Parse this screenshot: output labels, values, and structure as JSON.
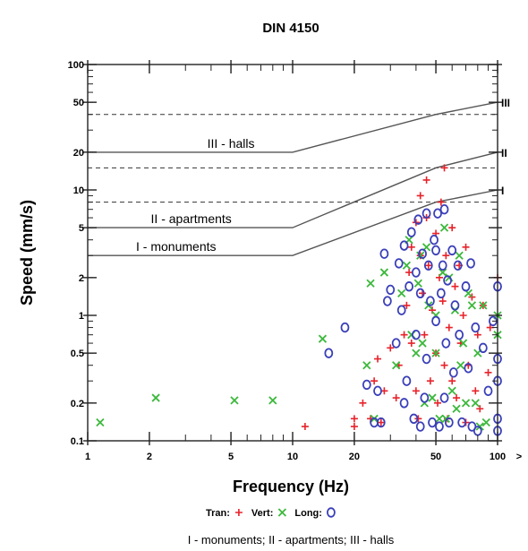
{
  "chart_data": {
    "type": "scatter",
    "title": "DIN 4150",
    "xlabel": "Frequency (Hz)",
    "ylabel": "Speed (mm/s)",
    "x_scale": "log",
    "y_scale": "log",
    "xlim": [
      1,
      100
    ],
    "ylim": [
      0.1,
      100
    ],
    "x_overflow_label": ">",
    "x_ticks": [
      {
        "value": 1,
        "label": "1"
      },
      {
        "value": 2,
        "label": "2"
      },
      {
        "value": 5,
        "label": "5"
      },
      {
        "value": 10,
        "label": "10"
      },
      {
        "value": 20,
        "label": "20"
      },
      {
        "value": 50,
        "label": "50"
      },
      {
        "value": 100,
        "label": "100"
      }
    ],
    "y_ticks": [
      {
        "value": 0.1,
        "label": "0.1"
      },
      {
        "value": 0.2,
        "label": "0.2"
      },
      {
        "value": 0.5,
        "label": "0.5"
      },
      {
        "value": 1,
        "label": "1"
      },
      {
        "value": 2,
        "label": "2"
      },
      {
        "value": 5,
        "label": "5"
      },
      {
        "value": 10,
        "label": "10"
      },
      {
        "value": 20,
        "label": "20"
      },
      {
        "value": 50,
        "label": "50"
      },
      {
        "value": 100,
        "label": "100"
      }
    ],
    "dashed_levels": [
      40,
      15,
      8
    ],
    "limit_curves": [
      {
        "label": "III - halls",
        "class_label": "III",
        "points": [
          [
            1,
            20
          ],
          [
            10,
            20
          ],
          [
            50,
            40
          ],
          [
            100,
            50
          ]
        ],
        "label_at": [
          5,
          20
        ]
      },
      {
        "label": "II - apartments",
        "class_label": "II",
        "points": [
          [
            1,
            5
          ],
          [
            10,
            5
          ],
          [
            50,
            15
          ],
          [
            100,
            20
          ]
        ],
        "label_at": [
          3.2,
          5
        ]
      },
      {
        "label": "I - monuments",
        "class_label": "I",
        "points": [
          [
            1,
            3
          ],
          [
            10,
            3
          ],
          [
            50,
            8
          ],
          [
            100,
            10
          ]
        ],
        "label_at": [
          2.7,
          3
        ]
      }
    ],
    "legend": {
      "placement": "bottom",
      "items": [
        {
          "label": "Tran:",
          "marker": "+",
          "color": "#e8222a"
        },
        {
          "label": "Vert:",
          "marker": "x",
          "color": "#3cb83c"
        },
        {
          "label": "Long:",
          "marker": "o",
          "color": "#3a3fb8"
        }
      ]
    },
    "series": [
      {
        "name": "Tran",
        "marker": "+",
        "color": "#e8222a",
        "points": [
          [
            11.5,
            0.13
          ],
          [
            20,
            0.15
          ],
          [
            20,
            0.13
          ],
          [
            22,
            0.2
          ],
          [
            24,
            0.15
          ],
          [
            25,
            0.3
          ],
          [
            26,
            0.45
          ],
          [
            27,
            0.14
          ],
          [
            28,
            0.25
          ],
          [
            30,
            0.55
          ],
          [
            32,
            0.22
          ],
          [
            33,
            0.4
          ],
          [
            35,
            0.7
          ],
          [
            36,
            1.2
          ],
          [
            37,
            2.2
          ],
          [
            38,
            3.5
          ],
          [
            38,
            0.6
          ],
          [
            40,
            5.5
          ],
          [
            40,
            0.25
          ],
          [
            41,
            0.15
          ],
          [
            42,
            9
          ],
          [
            42,
            3.0
          ],
          [
            43,
            1.5
          ],
          [
            44,
            0.7
          ],
          [
            45,
            12
          ],
          [
            45,
            6
          ],
          [
            46,
            2.5
          ],
          [
            47,
            0.3
          ],
          [
            48,
            1.1
          ],
          [
            50,
            4.5
          ],
          [
            50,
            0.5
          ],
          [
            51,
            0.2
          ],
          [
            52,
            2
          ],
          [
            53,
            8
          ],
          [
            54,
            1.3
          ],
          [
            55,
            0.4
          ],
          [
            55,
            15
          ],
          [
            56,
            3
          ],
          [
            57,
            0.15
          ],
          [
            58,
            0.8
          ],
          [
            60,
            5
          ],
          [
            60,
            0.3
          ],
          [
            62,
            1.7
          ],
          [
            63,
            0.22
          ],
          [
            65,
            2.5
          ],
          [
            66,
            0.6
          ],
          [
            68,
            1.0
          ],
          [
            70,
            3.5
          ],
          [
            70,
            0.14
          ],
          [
            72,
            0.4
          ],
          [
            75,
            1.4
          ],
          [
            78,
            0.25
          ],
          [
            80,
            0.7
          ],
          [
            82,
            0.18
          ],
          [
            85,
            1.2
          ],
          [
            90,
            0.35
          ],
          [
            92,
            0.8
          ],
          [
            100,
            2
          ]
        ]
      },
      {
        "name": "Vert",
        "marker": "x",
        "color": "#3cb83c",
        "points": [
          [
            1.15,
            0.14
          ],
          [
            2.15,
            0.22
          ],
          [
            5.2,
            0.21
          ],
          [
            8.0,
            0.21
          ],
          [
            14,
            0.65
          ],
          [
            23,
            0.4
          ],
          [
            24,
            1.8
          ],
          [
            25,
            0.15
          ],
          [
            28,
            2.2
          ],
          [
            32,
            0.4
          ],
          [
            34,
            1.5
          ],
          [
            36,
            2.5
          ],
          [
            37,
            4
          ],
          [
            38,
            0.7
          ],
          [
            40,
            0.5
          ],
          [
            41,
            1.8
          ],
          [
            42,
            3
          ],
          [
            43,
            0.6
          ],
          [
            44,
            0.2
          ],
          [
            45,
            3.5
          ],
          [
            46,
            1.2
          ],
          [
            48,
            0.22
          ],
          [
            50,
            0.5
          ],
          [
            50,
            1.0
          ],
          [
            52,
            0.15
          ],
          [
            54,
            2.2
          ],
          [
            55,
            5
          ],
          [
            56,
            0.15
          ],
          [
            58,
            2
          ],
          [
            60,
            0.25
          ],
          [
            62,
            1.1
          ],
          [
            63,
            0.18
          ],
          [
            65,
            3
          ],
          [
            66,
            0.4
          ],
          [
            68,
            0.6
          ],
          [
            70,
            0.2
          ],
          [
            72,
            1.5
          ],
          [
            75,
            1.2
          ],
          [
            78,
            0.2
          ],
          [
            80,
            0.5
          ],
          [
            82,
            0.13
          ],
          [
            85,
            1.2
          ],
          [
            88,
            0.14
          ],
          [
            100,
            0.7
          ],
          [
            100,
            1.0
          ]
        ]
      },
      {
        "name": "Long",
        "marker": "o",
        "color": "#3a3fb8",
        "points": [
          [
            15,
            0.5
          ],
          [
            18,
            0.8
          ],
          [
            23,
            0.28
          ],
          [
            25,
            0.14
          ],
          [
            26,
            0.25
          ],
          [
            27,
            0.14
          ],
          [
            28,
            3.1
          ],
          [
            29,
            1.3
          ],
          [
            30,
            1.6
          ],
          [
            32,
            0.6
          ],
          [
            33,
            2.6
          ],
          [
            34,
            1.1
          ],
          [
            35,
            3.6
          ],
          [
            35,
            0.2
          ],
          [
            36,
            0.3
          ],
          [
            37,
            1.7
          ],
          [
            38,
            4.6
          ],
          [
            39,
            0.15
          ],
          [
            40,
            2.2
          ],
          [
            40,
            0.7
          ],
          [
            41,
            5.8
          ],
          [
            42,
            0.13
          ],
          [
            42,
            1.5
          ],
          [
            43,
            3.1
          ],
          [
            44,
            0.22
          ],
          [
            45,
            6.5
          ],
          [
            45,
            0.45
          ],
          [
            46,
            2.5
          ],
          [
            47,
            1.3
          ],
          [
            48,
            0.14
          ],
          [
            49,
            4
          ],
          [
            50,
            0.9
          ],
          [
            50,
            3.3
          ],
          [
            51,
            6.5
          ],
          [
            52,
            0.13
          ],
          [
            53,
            1.5
          ],
          [
            54,
            2.5
          ],
          [
            55,
            0.22
          ],
          [
            55,
            7
          ],
          [
            56,
            0.6
          ],
          [
            57,
            1.9
          ],
          [
            58,
            0.14
          ],
          [
            60,
            3.3
          ],
          [
            61,
            0.35
          ],
          [
            62,
            1.2
          ],
          [
            64,
            2.5
          ],
          [
            65,
            0.7
          ],
          [
            67,
            0.14
          ],
          [
            70,
            1.7
          ],
          [
            72,
            0.38
          ],
          [
            74,
            2.6
          ],
          [
            75,
            0.13
          ],
          [
            78,
            0.8
          ],
          [
            80,
            0.12
          ],
          [
            85,
            0.55
          ],
          [
            90,
            0.25
          ],
          [
            95,
            0.9
          ],
          [
            100,
            1.7
          ],
          [
            100,
            0.45
          ],
          [
            100,
            0.3
          ],
          [
            100,
            0.15
          ],
          [
            100,
            0.12
          ]
        ]
      }
    ]
  },
  "caption": "I - monuments; II - apartments; III - halls"
}
